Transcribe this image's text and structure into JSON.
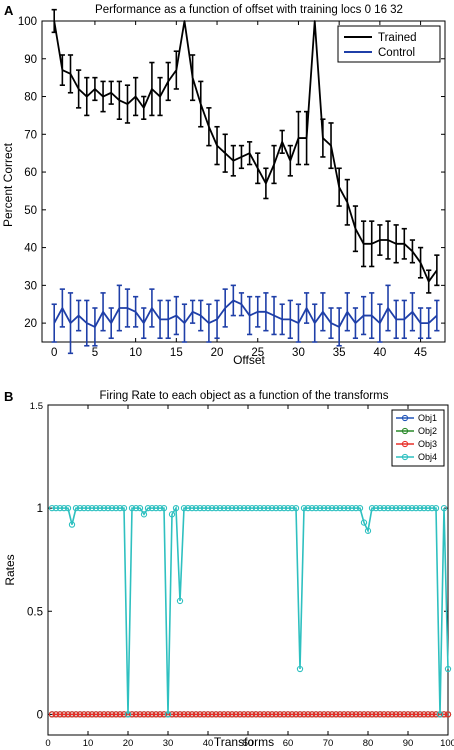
{
  "chart_data": [
    {
      "panel": "A",
      "type": "line",
      "title": "Performance as a function of offset with training locs 0 16 32",
      "xlabel": "Offset",
      "ylabel": "Percent Correct",
      "xlim": [
        -1.5,
        48
      ],
      "ylim": [
        15,
        100
      ],
      "xticks": [
        0,
        5,
        10,
        15,
        20,
        25,
        30,
        35,
        40,
        45
      ],
      "yticks": [
        20,
        30,
        40,
        50,
        60,
        70,
        80,
        90,
        100
      ],
      "grid": false,
      "legend_position": "top-right",
      "x": [
        0,
        1,
        2,
        3,
        4,
        5,
        6,
        7,
        8,
        9,
        10,
        11,
        12,
        13,
        14,
        15,
        16,
        17,
        18,
        19,
        20,
        21,
        22,
        23,
        24,
        25,
        26,
        27,
        28,
        29,
        30,
        31,
        32,
        33,
        34,
        35,
        36,
        37,
        38,
        39,
        40,
        41,
        42,
        43,
        44,
        45,
        46,
        47
      ],
      "series": [
        {
          "name": "Trained",
          "color": "#000000",
          "values": [
            100,
            87,
            86,
            82,
            80,
            82,
            80,
            81,
            79,
            78,
            80,
            77,
            82,
            80,
            84,
            87,
            100,
            85,
            78,
            72,
            67,
            65,
            63,
            64,
            65,
            61,
            57,
            62,
            68,
            63,
            69,
            69,
            100,
            69,
            67,
            56,
            52,
            45,
            41,
            41,
            42,
            42,
            41,
            41,
            39,
            36,
            31,
            34
          ],
          "errors": [
            3,
            4,
            5,
            5,
            5,
            3,
            4,
            3,
            5,
            5,
            5,
            3,
            7,
            5,
            5,
            5,
            0,
            6,
            6,
            5,
            5,
            5,
            4,
            3,
            3,
            4,
            4,
            5,
            3,
            4,
            7,
            7,
            0,
            5,
            6,
            5,
            6,
            6,
            6,
            6,
            4,
            5,
            5,
            4,
            3,
            4,
            3,
            4
          ]
        },
        {
          "name": "Control",
          "color": "#1f3fa8",
          "values": [
            20,
            24,
            20,
            22,
            20,
            19,
            23,
            20,
            24,
            24,
            23,
            20,
            24,
            21,
            21,
            22,
            20,
            23,
            22,
            20,
            21,
            24,
            26,
            25,
            22,
            23,
            23,
            22,
            21,
            21,
            20,
            24,
            20,
            23,
            20,
            19,
            23,
            20,
            22,
            22,
            20,
            24,
            21,
            21,
            23,
            20,
            20,
            22
          ],
          "errors": [
            5,
            5,
            8,
            4,
            6,
            5,
            5,
            4,
            6,
            5,
            4,
            4,
            5,
            5,
            5,
            5,
            5,
            3,
            4,
            5,
            5,
            5,
            4,
            3,
            5,
            4,
            5,
            5,
            4,
            5,
            5,
            4,
            5,
            5,
            4,
            5,
            5,
            4,
            5,
            6,
            5,
            6,
            5,
            5,
            5,
            4,
            4,
            4
          ]
        }
      ]
    },
    {
      "panel": "B",
      "type": "line",
      "title": "Firing Rate to each object as a function of the transforms",
      "xlabel": "Transforms",
      "ylabel": "Rates",
      "xlim": [
        0,
        100
      ],
      "ylim": [
        -0.1,
        1.5
      ],
      "xticks": [
        0,
        10,
        20,
        30,
        40,
        50,
        60,
        70,
        80,
        90,
        100
      ],
      "yticks": [
        0,
        0.5,
        1,
        1.5
      ],
      "ytick_labels": [
        "0",
        "0.5",
        "1",
        "1.5"
      ],
      "grid": false,
      "legend_position": "top-right",
      "x_range": [
        1,
        100
      ],
      "series": [
        {
          "name": "Obj1",
          "color": "#2255b8",
          "constant": 0
        },
        {
          "name": "Obj2",
          "color": "#2a8a2a",
          "constant": 0
        },
        {
          "name": "Obj3",
          "color": "#e8302a",
          "constant": 0
        },
        {
          "name": "Obj4",
          "color": "#2ec0c0",
          "baseline": 1,
          "exceptions": {
            "6": 0.92,
            "20": 0,
            "24": 0.97,
            "30": 0,
            "31": 0.97,
            "33": 0.55,
            "63": 0.22,
            "79": 0.93,
            "80": 0.89,
            "98": 0,
            "100": 0.22
          }
        }
      ]
    }
  ],
  "labels": {
    "panel_a": "A",
    "panel_b": "B"
  }
}
